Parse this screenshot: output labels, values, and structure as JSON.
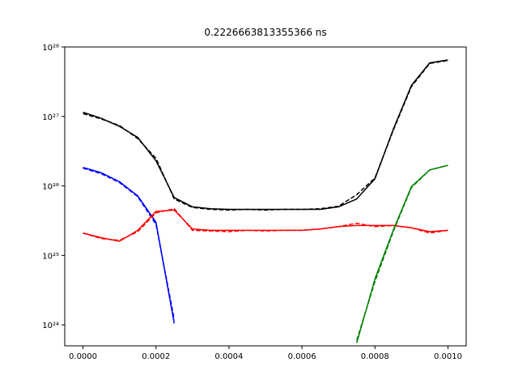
{
  "chart_data": {
    "type": "line",
    "title": "0.2226663813355366 ns",
    "yscale": "log",
    "x": [
      0,
      5e-05,
      0.0001,
      0.00015,
      0.0002,
      0.00025,
      0.0003,
      0.00035,
      0.0004,
      0.00045,
      0.0005,
      0.00055,
      0.0006,
      0.00065,
      0.0007,
      0.00075,
      0.0008,
      0.00085,
      0.0009,
      0.00095,
      0.001
    ],
    "series": [
      {
        "color": "#000000",
        "dashed": false,
        "values": [
          1.15e+27,
          9.4e+26,
          7.2e+26,
          5e+26,
          2.3e+26,
          6.8e+25,
          5e+25,
          4.7e+25,
          4.6e+25,
          4.6e+25,
          4.6e+25,
          4.6e+25,
          4.6e+25,
          4.6e+25,
          5e+25,
          6.5e+25,
          1.27e+26,
          6.5e+26,
          2.8e+27,
          5.9e+27,
          6.5e+27
        ]
      },
      {
        "color": "#000000",
        "dashed": true,
        "values": [
          1.1e+27,
          9.2e+26,
          7.4e+26,
          4.8e+26,
          2.5e+26,
          6.5e+25,
          4.9e+25,
          4.6e+25,
          4.5e+25,
          4.6e+25,
          4.5e+25,
          4.6e+25,
          4.6e+25,
          4.7e+25,
          5.1e+25,
          7.5e+25,
          1.3e+26,
          6.3e+26,
          2.7e+27,
          5.8e+27,
          6.4e+27
        ]
      },
      {
        "color": "#0000ff",
        "dashed": false,
        "values": [
          1.85e+26,
          1.55e+26,
          1.15e+26,
          7.2e+25,
          3e+25,
          1.05e+24,
          null,
          null,
          null,
          null,
          null,
          null,
          null,
          null,
          null,
          null,
          null,
          null,
          null,
          null,
          null
        ]
      },
      {
        "color": "#0000ff",
        "dashed": true,
        "values": [
          1.8e+26,
          1.5e+26,
          1.12e+26,
          7e+25,
          2.8e+25,
          1.2e+24,
          null,
          null,
          null,
          null,
          null,
          null,
          null,
          null,
          null,
          null,
          null,
          null,
          null,
          null,
          null
        ]
      },
      {
        "color": "#ff0000",
        "dashed": false,
        "values": [
          2.1e+25,
          1.8e+25,
          1.6e+25,
          2.3e+25,
          4.3e+25,
          4.5e+25,
          2.4e+25,
          2.3e+25,
          2.3e+25,
          2.3e+25,
          2.3e+25,
          2.3e+25,
          2.3e+25,
          2.4e+25,
          2.6e+25,
          2.7e+25,
          2.7e+25,
          2.7e+25,
          2.5e+25,
          2.2e+25,
          2.3e+25
        ]
      },
      {
        "color": "#ff0000",
        "dashed": true,
        "values": [
          2.1e+25,
          1.75e+25,
          1.65e+25,
          2.2e+25,
          4.1e+25,
          4.7e+25,
          2.3e+25,
          2.25e+25,
          2.2e+25,
          2.3e+25,
          2.25e+25,
          2.3e+25,
          2.3e+25,
          2.4e+25,
          2.6e+25,
          2.9e+25,
          2.6e+25,
          2.7e+25,
          2.5e+25,
          2.1e+25,
          2.3e+25
        ]
      },
      {
        "color": "#008000",
        "dashed": false,
        "values": [
          null,
          null,
          null,
          null,
          null,
          null,
          null,
          null,
          null,
          null,
          null,
          null,
          null,
          null,
          null,
          5.5e+23,
          4.6e+24,
          2.3e+25,
          9.8e+25,
          1.7e+26,
          1.98e+26
        ]
      },
      {
        "color": "#008000",
        "dashed": true,
        "values": [
          null,
          null,
          null,
          null,
          null,
          null,
          null,
          null,
          null,
          null,
          null,
          null,
          null,
          null,
          null,
          6e+23,
          4.2e+24,
          2.2e+25,
          9.5e+25,
          1.7e+26,
          1.98e+26
        ]
      }
    ],
    "xlim": [
      -5e-05,
      0.00105
    ],
    "ylim": [
      5e+23,
      1e+28
    ],
    "xticks": [
      {
        "value": 0,
        "label": "0.0000"
      },
      {
        "value": 0.0002,
        "label": "0.0002"
      },
      {
        "value": 0.0004,
        "label": "0.0004"
      },
      {
        "value": 0.0006,
        "label": "0.0006"
      },
      {
        "value": 0.0008,
        "label": "0.0008"
      },
      {
        "value": 0.001,
        "label": "0.0010"
      }
    ],
    "yticks": [
      {
        "value": 1e+24,
        "label": "10²⁴"
      },
      {
        "value": 1e+25,
        "label": "10²⁵"
      },
      {
        "value": 1e+26,
        "label": "10²⁶"
      },
      {
        "value": 1e+27,
        "label": "10²⁷"
      },
      {
        "value": 1e+28,
        "label": "10²⁸"
      }
    ]
  }
}
